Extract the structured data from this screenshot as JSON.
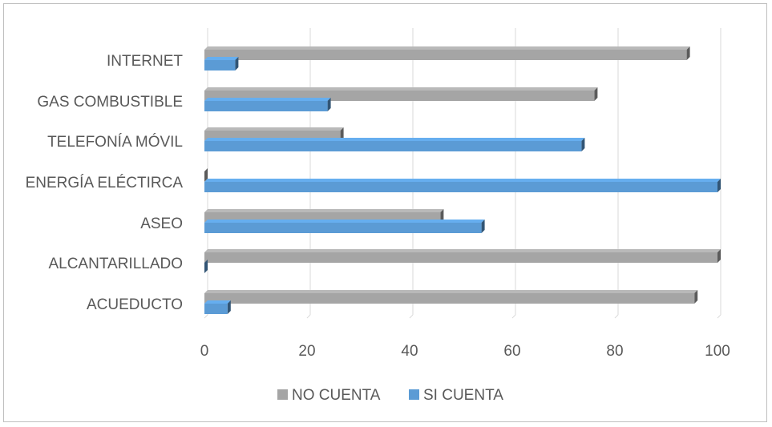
{
  "chart_data": {
    "type": "bar",
    "orientation": "horizontal",
    "style": "3d-clustered",
    "categories": [
      "ACUEDUCTO",
      "ALCANTARILLADO",
      "ASEO",
      "ENERGÍA ELÉCTIRCA",
      "TELEFONÍA MÓVIL",
      "GAS COMBUSTIBLE",
      "INTERNET"
    ],
    "series": [
      {
        "name": "NO CUENTA",
        "color": "#a5a5a5",
        "values": [
          95.5,
          100,
          46,
          0,
          26.5,
          76,
          94
        ]
      },
      {
        "name": "SI CUENTA",
        "color": "#5b9bd5",
        "values": [
          4.5,
          0,
          54,
          100,
          73.5,
          24,
          6
        ]
      }
    ],
    "xlim": [
      0,
      100
    ],
    "x_ticks": [
      0,
      20,
      40,
      60,
      80,
      100
    ],
    "grid": true,
    "legend_position": "bottom",
    "title": "",
    "xlabel": "",
    "ylabel": ""
  }
}
